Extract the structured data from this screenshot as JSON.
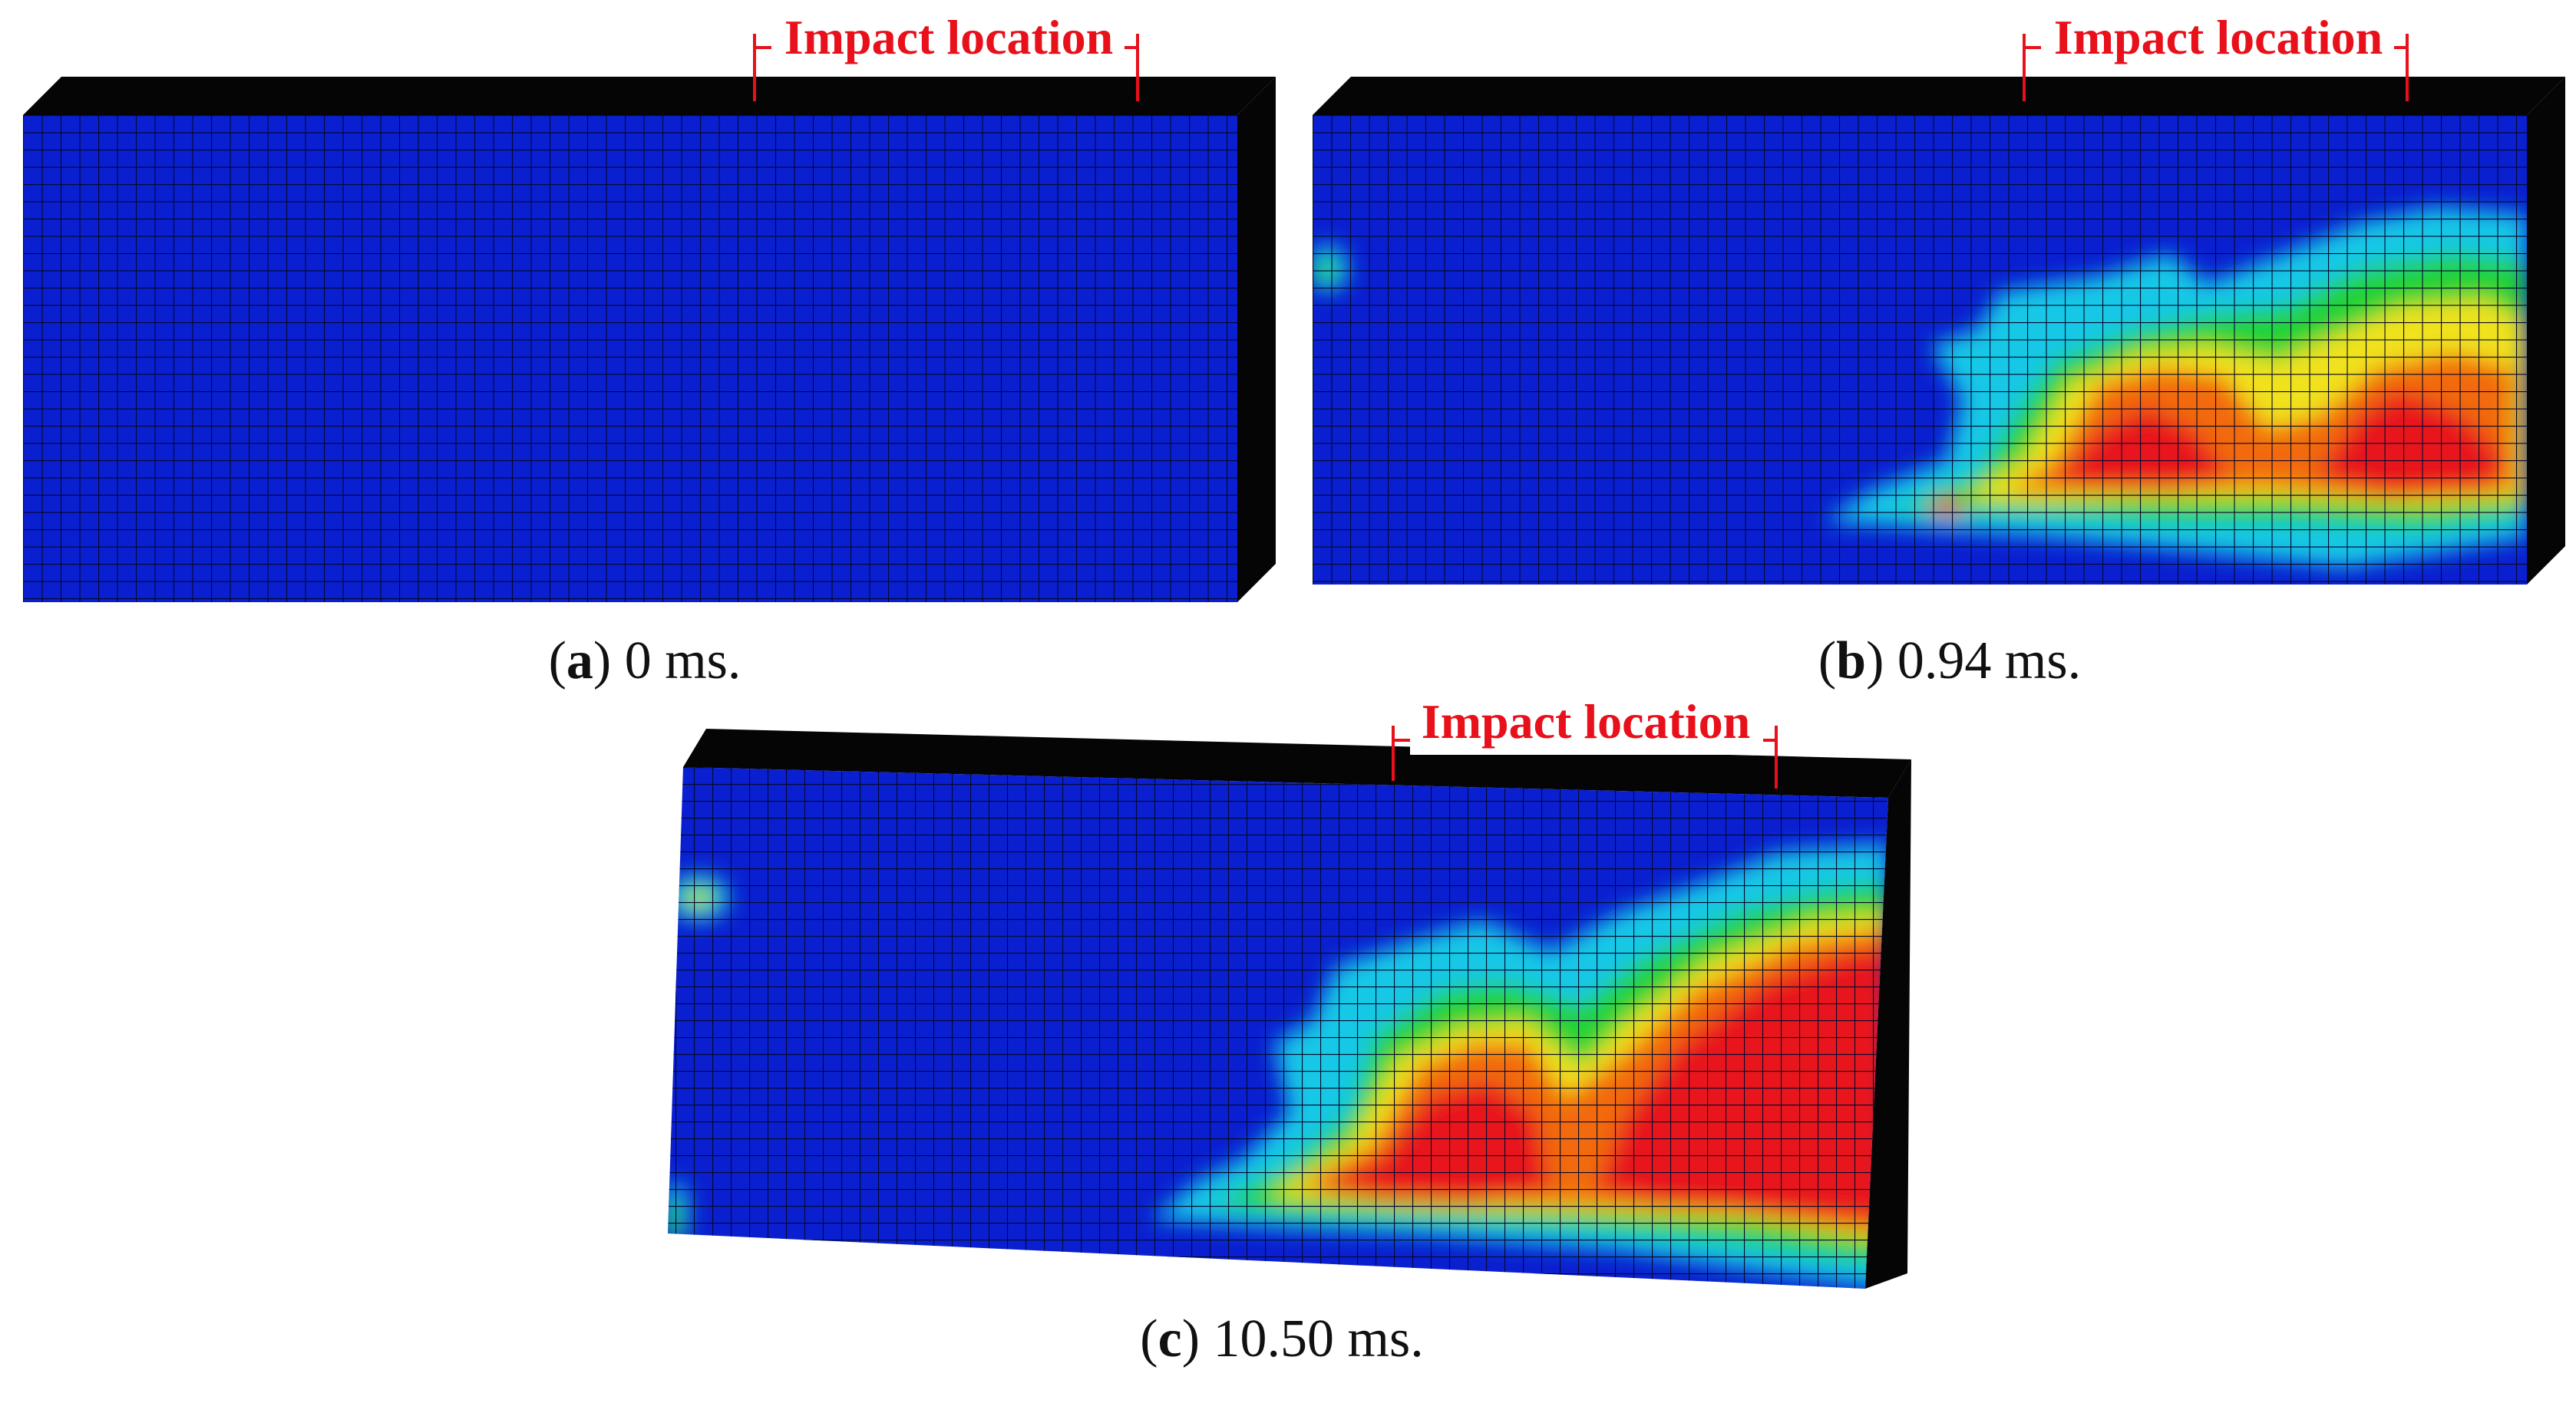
{
  "colors": {
    "background": "#0a1fd0",
    "mesh_line": "#04082a",
    "slab_edge": "#050505",
    "annotation": "#e8101a",
    "contour_scale": [
      "#0a1fd0",
      "#19c8e6",
      "#22d238",
      "#f0e21a",
      "#f26a0c",
      "#e8141a"
    ]
  },
  "panels": [
    {
      "id": "a",
      "annotation": "Impact location",
      "caption_letter": "a",
      "caption_time": "0 ms.",
      "damage": "none"
    },
    {
      "id": "b",
      "annotation": "Impact location",
      "caption_letter": "b",
      "caption_time": "0.94 ms.",
      "damage": "partial"
    },
    {
      "id": "c",
      "annotation": "Impact location",
      "caption_letter": "c",
      "caption_time": "10.50 ms.",
      "damage": "extensive"
    }
  ]
}
